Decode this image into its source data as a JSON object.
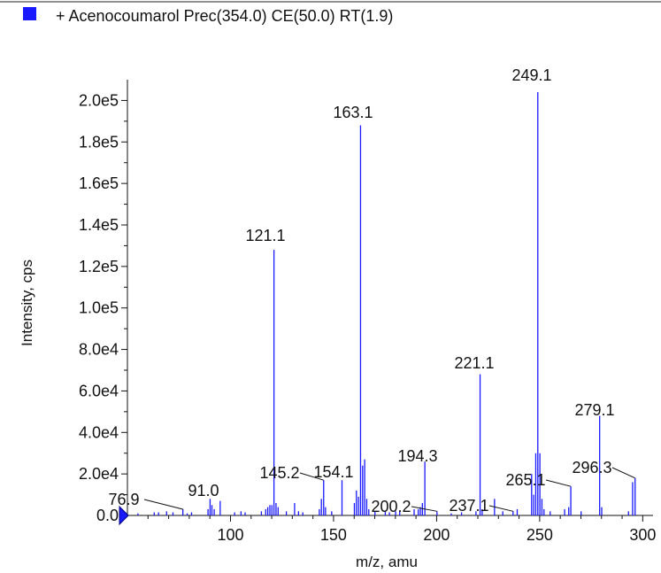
{
  "chart_data": {
    "type": "bar",
    "title": "+ Acenocoumarol  Prec(354.0) CE(50.0) RT(1.9)",
    "xlabel": "m/z, amu",
    "ylabel": "Intensity, cps",
    "xlim": [
      50,
      305
    ],
    "ylim": [
      0,
      210000
    ],
    "x_ticks": [
      100,
      150,
      200,
      250,
      300
    ],
    "y_ticks": [
      0,
      20000,
      40000,
      60000,
      80000,
      100000,
      120000,
      140000,
      160000,
      180000,
      200000
    ],
    "y_tick_labels": [
      "0.0",
      "2.0e4",
      "4.0e4",
      "6.0e4",
      "8.0e4",
      "1.0e5",
      "1.2e5",
      "1.4e5",
      "1.6e5",
      "1.8e5",
      "2.0e5"
    ],
    "grid": false,
    "legend_position": "top-left",
    "series": [
      {
        "name": "+ Acenocoumarol  Prec(354.0) CE(50.0) RT(1.9)",
        "color": "#1a1aff",
        "x": [
          55.1,
          63.0,
          65.1,
          69.0,
          72.1,
          76.9,
          79.0,
          81.1,
          89.1,
          90.1,
          91.0,
          92.1,
          95.0,
          102.0,
          105.1,
          107.1,
          115.0,
          117.1,
          118.1,
          119.1,
          120.1,
          121.1,
          122.1,
          123.1,
          127.1,
          131.1,
          133.0,
          135.1,
          143.1,
          144.1,
          145.2,
          146.1,
          149.1,
          154.1,
          160.1,
          161.1,
          162.1,
          163.1,
          164.1,
          165.1,
          166.1,
          167.1,
          170.1,
          175.1,
          177.1,
          180.1,
          182.1,
          189.1,
          191.1,
          192.1,
          193.1,
          194.3,
          200.2,
          207.1,
          212.1,
          219.1,
          221.1,
          222.1,
          228.1,
          232.1,
          237.1,
          239.1,
          246.1,
          247.1,
          248.1,
          249.1,
          250.1,
          251.1,
          252.1,
          255.1,
          262.1,
          264.1,
          265.1,
          270.1,
          279.1,
          280.1,
          293.1,
          295.1,
          296.3
        ],
        "values": [
          1000,
          1500,
          1500,
          2000,
          1500,
          3000,
          1000,
          1500,
          3000,
          8000,
          5000,
          3000,
          7000,
          1500,
          2000,
          1500,
          2000,
          3000,
          4000,
          5000,
          5000,
          128000,
          6000,
          4000,
          2000,
          6000,
          2000,
          1500,
          3000,
          8000,
          17000,
          4000,
          2000,
          17000,
          6000,
          12000,
          9000,
          188000,
          24000,
          27000,
          8000,
          3000,
          2000,
          2000,
          1500,
          2000,
          2000,
          3000,
          3000,
          4000,
          6000,
          26000,
          2000,
          1000,
          1500,
          2000,
          68000,
          3000,
          8000,
          2000,
          2000,
          3000,
          20000,
          10000,
          30000,
          204000,
          30000,
          8000,
          3000,
          2000,
          3000,
          4000,
          14000,
          2000,
          48000,
          4000,
          2000,
          16000,
          18000
        ]
      }
    ],
    "annotations": [
      {
        "text": "76.9",
        "x": 76.9
      },
      {
        "text": "91.0",
        "x": 91.0
      },
      {
        "text": "121.1",
        "x": 121.1
      },
      {
        "text": "145.2",
        "x": 145.2
      },
      {
        "text": "154.1",
        "x": 154.1
      },
      {
        "text": "163.1",
        "x": 163.1
      },
      {
        "text": "194.3",
        "x": 194.3
      },
      {
        "text": "200.2",
        "x": 200.2
      },
      {
        "text": "221.1",
        "x": 221.1
      },
      {
        "text": "237.1",
        "x": 237.1
      },
      {
        "text": "249.1",
        "x": 249.1
      },
      {
        "text": "265.1",
        "x": 265.1
      },
      {
        "text": "279.1",
        "x": 279.1
      },
      {
        "text": "296.3",
        "x": 296.3
      }
    ]
  }
}
